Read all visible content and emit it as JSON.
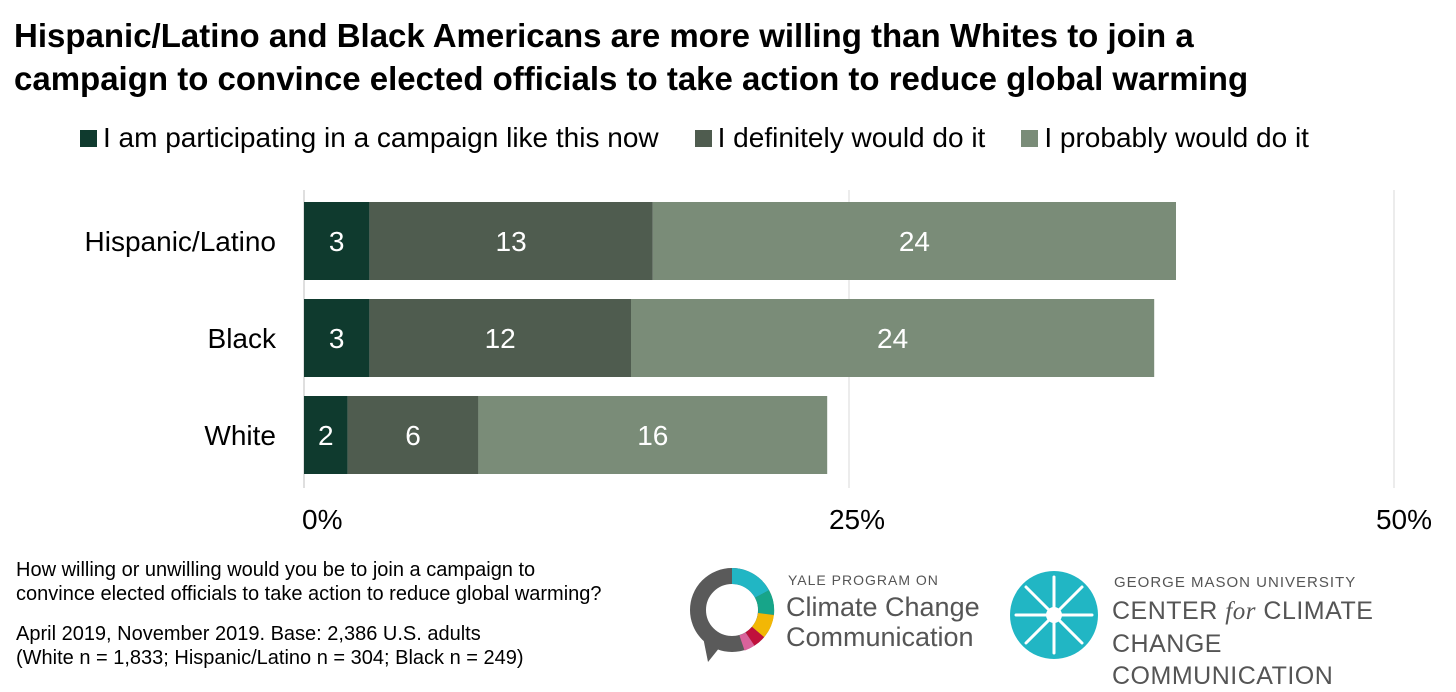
{
  "title": {
    "line1": "Hispanic/Latino and Black Americans are more willing than Whites to join a",
    "line2": "campaign to convince elected officials to take action to reduce global warming"
  },
  "colors": {
    "participating": "#0f3a2e",
    "definitely": "#4f5c4f",
    "probably": "#7a8c78",
    "grid": "#d9d9d9",
    "logo_teal": "#21b6c4"
  },
  "chart_data": {
    "type": "bar",
    "orientation": "horizontal",
    "stacked": true,
    "categories": [
      "Hispanic/Latino",
      "Black",
      "White"
    ],
    "series": [
      {
        "name": "I am participating in a campaign like this now",
        "values": [
          3,
          3,
          2
        ]
      },
      {
        "name": "I definitely would do it",
        "values": [
          13,
          12,
          6
        ]
      },
      {
        "name": "I probably would do it",
        "values": [
          24,
          24,
          16
        ]
      }
    ],
    "xlim": [
      0,
      50
    ],
    "x_ticks": [
      "0%",
      "25%",
      "50%"
    ],
    "x_tick_values": [
      0,
      25,
      50
    ],
    "grid": true,
    "legend_position": "top",
    "data_labels": true
  },
  "footnote": {
    "question_line1": "How willing or unwilling would you be to join a campaign to",
    "question_line2": "convince elected officials to take action to reduce global warming?",
    "base_line1": "April 2019, November 2019. Base: 2,386 U.S. adults",
    "base_line2": "(White n = 1,833; Hispanic/Latino n = 304; Black n = 249)"
  },
  "logos": {
    "yale_small": "YALE PROGRAM ON",
    "yale_line1": "Climate Change",
    "yale_line2": "Communication",
    "gmu_small": "GEORGE MASON UNIVERSITY",
    "gmu_center": "CENTER",
    "gmu_for": "for",
    "gmu_rest": "CLIMATE CHANGE",
    "gmu_line2": "COMMUNICATION"
  }
}
